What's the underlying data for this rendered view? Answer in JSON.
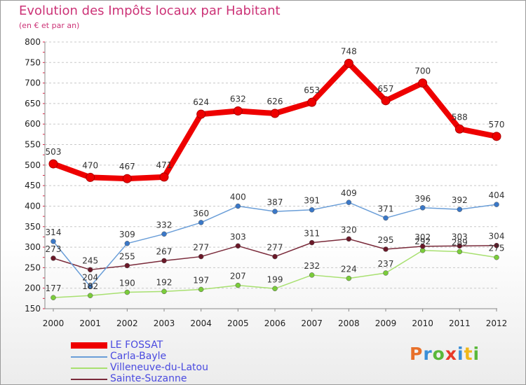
{
  "title": "Evolution des Impôts locaux par Habitant",
  "subtitle": "(en € et par an)",
  "brand": {
    "text": "Proxiti",
    "letter_colors": [
      "#e8702a",
      "#3a8fd8",
      "#5ab83a",
      "#e83a2a",
      "#3a8fd8",
      "#f0b81a",
      "#5ab83a"
    ]
  },
  "chart_data": {
    "type": "line",
    "title": "Evolution des Impôts locaux par Habitant",
    "subtitle": "(en € et par an)",
    "xlabel": "",
    "ylabel": "",
    "x": [
      2000,
      2001,
      2002,
      2003,
      2004,
      2005,
      2006,
      2007,
      2008,
      2009,
      2010,
      2011,
      2012
    ],
    "x_tick_labels": [
      "2000",
      "2001",
      "2002",
      "2003",
      "2004",
      "2005",
      "2006",
      "2007",
      "2008",
      "2009",
      "2010",
      "2011",
      "2012"
    ],
    "ylim": [
      150,
      800
    ],
    "y_ticks": [
      150,
      200,
      250,
      300,
      350,
      400,
      450,
      500,
      550,
      600,
      650,
      700,
      750,
      800
    ],
    "y_tick_labels": [
      "150",
      "200",
      "250",
      "300",
      "350",
      "400",
      "450",
      "500",
      "550",
      "600",
      "650",
      "700",
      "750",
      "800"
    ],
    "grid": "horizontal dashed",
    "legend_position": "bottom-left",
    "series": [
      {
        "name": "LE FOSSAT",
        "color": "#ee0000",
        "emphasis": "thick",
        "values": [
          503,
          470,
          467,
          471,
          624,
          632,
          626,
          653,
          748,
          657,
          700,
          588,
          570
        ],
        "labels": [
          "503",
          "470",
          "467",
          "471",
          "624",
          "632",
          "626",
          "653",
          "748",
          "657",
          "700",
          "588",
          "570"
        ]
      },
      {
        "name": "Carla-Bayle",
        "color": "#6a9ed8",
        "marker_color": "#3a78c8",
        "values": [
          314,
          204,
          309,
          332,
          360,
          400,
          387,
          391,
          409,
          371,
          396,
          392,
          404
        ],
        "labels": [
          "314",
          "204",
          "309",
          "332",
          "360",
          "400",
          "387",
          "391",
          "409",
          "371",
          "396",
          "392",
          "404"
        ]
      },
      {
        "name": "Villeneuve-du-Latou",
        "color": "#a8e070",
        "marker_color": "#7acc3a",
        "values": [
          177,
          182,
          190,
          192,
          197,
          207,
          199,
          232,
          224,
          237,
          292,
          289,
          275
        ],
        "labels": [
          "177",
          "182",
          "190",
          "192",
          "197",
          "207",
          "199",
          "232",
          "224",
          "237",
          "292",
          "289",
          "275"
        ]
      },
      {
        "name": "Sainte-Suzanne",
        "color": "#7a2a3a",
        "marker_color": "#6a1828",
        "values": [
          273,
          245,
          255,
          267,
          277,
          303,
          277,
          311,
          320,
          295,
          302,
          303,
          304
        ],
        "labels": [
          "273",
          "245",
          "255",
          "267",
          "277",
          "303",
          "277",
          "311",
          "320",
          "295",
          "302",
          "303",
          "304"
        ]
      }
    ]
  }
}
